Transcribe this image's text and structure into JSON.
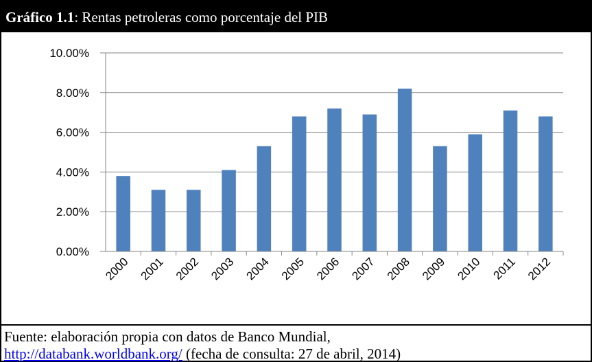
{
  "chart_data": {
    "type": "bar",
    "title_prefix": "Gráfico 1.1",
    "title": ": Rentas petroleras como porcentaje del PIB",
    "categories": [
      "2000",
      "2001",
      "2002",
      "2003",
      "2004",
      "2005",
      "2006",
      "2007",
      "2008",
      "2009",
      "2010",
      "2011",
      "2012"
    ],
    "values": [
      3.8,
      3.1,
      3.1,
      4.1,
      5.3,
      6.8,
      7.2,
      6.9,
      8.2,
      5.3,
      5.9,
      7.1,
      6.8
    ],
    "color": "#4f81bd",
    "ylim": [
      0,
      10
    ],
    "yticks": [
      {
        "value": 0,
        "label": "0.00%"
      },
      {
        "value": 2,
        "label": "2.00%"
      },
      {
        "value": 4,
        "label": "4.00%"
      },
      {
        "value": 6,
        "label": "6.00%"
      },
      {
        "value": 8,
        "label": "8.00%"
      },
      {
        "value": 10,
        "label": "10.00%"
      }
    ],
    "grid": true
  },
  "source": {
    "line1": "Fuente: elaboración propia con datos de Banco Mundial,",
    "link": "http://databank.worldbank.org/",
    "line2": " (fecha de consulta: 27 de abril, 2014)"
  }
}
